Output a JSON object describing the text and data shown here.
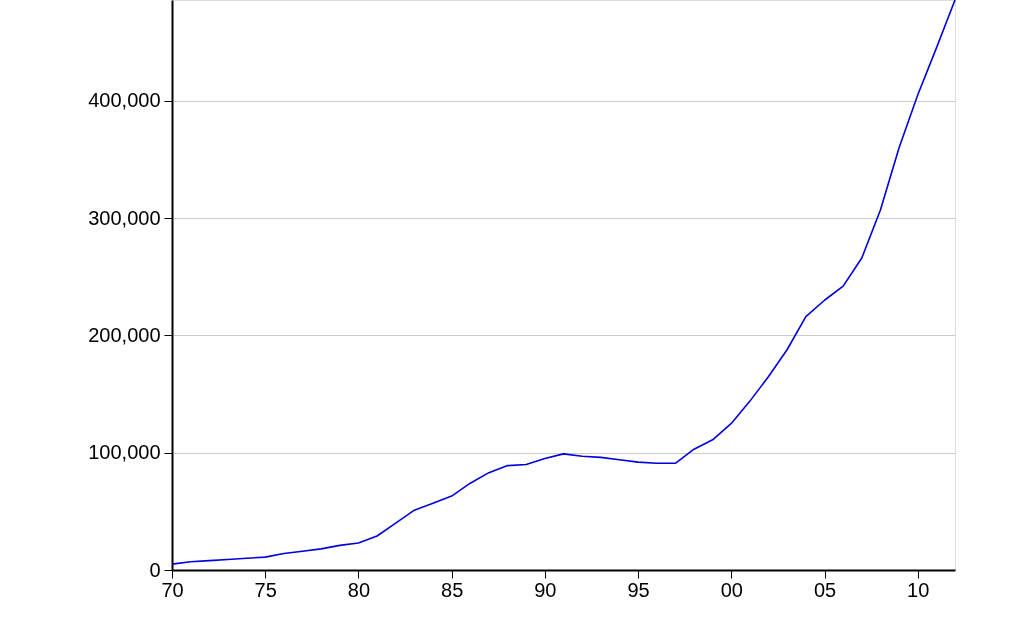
{
  "chart_data": {
    "type": "line",
    "x": [
      1970,
      1971,
      1972,
      1973,
      1974,
      1975,
      1976,
      1977,
      1978,
      1979,
      1980,
      1981,
      1982,
      1983,
      1984,
      1985,
      1986,
      1987,
      1988,
      1989,
      1990,
      1991,
      1992,
      1993,
      1994,
      1995,
      1996,
      1997,
      1998,
      1999,
      2000,
      2001,
      2002,
      2003,
      2004,
      2005,
      2006,
      2007,
      2008,
      2009,
      2010,
      2011,
      2012
    ],
    "series": [
      {
        "color": "#0000dd",
        "values": [
          5000,
          7000,
          8000,
          9000,
          10000,
          11000,
          14000,
          16000,
          18000,
          21000,
          23000,
          29000,
          40000,
          51000,
          57000,
          63000,
          74000,
          83000,
          89000,
          90000,
          95000,
          99000,
          97000,
          96000,
          94000,
          92000,
          91000,
          91000,
          103000,
          111000,
          125000,
          144000,
          165000,
          188000,
          216000,
          230000,
          242000,
          266000,
          307000,
          360000,
          405000,
          445000,
          486000
        ]
      }
    ],
    "xlim": [
      1970,
      2012
    ],
    "xticks": [
      {
        "value": 1970,
        "label": "70"
      },
      {
        "value": 1975,
        "label": "75"
      },
      {
        "value": 1980,
        "label": "80"
      },
      {
        "value": 1985,
        "label": "85"
      },
      {
        "value": 1990,
        "label": "90"
      },
      {
        "value": 1995,
        "label": "95"
      },
      {
        "value": 2000,
        "label": "00"
      },
      {
        "value": 2005,
        "label": "05"
      },
      {
        "value": 2010,
        "label": "10"
      }
    ],
    "ylim": [
      0,
      486000
    ],
    "yticks": [
      0,
      {
        "value": 100000,
        "label": "100,000"
      },
      {
        "value": 200000,
        "label": "200,000"
      },
      {
        "value": 300000,
        "label": "300,000"
      },
      {
        "value": 400000,
        "label": "400,000"
      }
    ],
    "grid": "y",
    "marker": "none",
    "line_style": "solid"
  }
}
